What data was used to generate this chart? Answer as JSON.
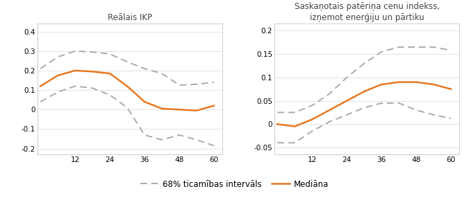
{
  "left_title": "Reālais IKP",
  "right_title": "Saskaņotais patēriņa cenu indekss,\nizņemot enerģiju un pārtiku",
  "x": [
    0,
    6,
    12,
    18,
    24,
    30,
    36,
    42,
    48,
    54,
    60
  ],
  "left_median": [
    0.12,
    0.175,
    0.2,
    0.195,
    0.185,
    0.12,
    0.04,
    0.005,
    0.0,
    -0.005,
    0.02
  ],
  "left_upper": [
    0.21,
    0.27,
    0.3,
    0.295,
    0.285,
    0.245,
    0.21,
    0.185,
    0.125,
    0.13,
    0.14
  ],
  "left_lower": [
    0.04,
    0.09,
    0.12,
    0.11,
    0.075,
    0.01,
    -0.13,
    -0.155,
    -0.13,
    -0.155,
    -0.185
  ],
  "right_median": [
    0.0,
    -0.005,
    0.01,
    0.03,
    0.05,
    0.07,
    0.085,
    0.09,
    0.09,
    0.085,
    0.075
  ],
  "right_upper": [
    0.025,
    0.025,
    0.04,
    0.065,
    0.1,
    0.13,
    0.155,
    0.165,
    0.165,
    0.165,
    0.158
  ],
  "right_lower": [
    -0.04,
    -0.04,
    -0.015,
    0.005,
    0.02,
    0.035,
    0.045,
    0.045,
    0.03,
    0.02,
    0.012
  ],
  "xticks": [
    12,
    24,
    36,
    48,
    60
  ],
  "left_yticks": [
    -0.2,
    -0.1,
    0.0,
    0.1,
    0.2,
    0.3,
    0.4
  ],
  "right_yticks": [
    -0.05,
    0.0,
    0.05,
    0.1,
    0.15,
    0.2
  ],
  "left_ylim": [
    -0.23,
    0.44
  ],
  "right_ylim": [
    -0.065,
    0.215
  ],
  "xlim": [
    -1,
    63
  ],
  "median_color": "#E87820",
  "ci_color": "#AAAAAA",
  "median_lw": 1.8,
  "ci_lw": 1.4,
  "ci_dash": [
    5,
    3
  ],
  "legend_ci_label": "68% ticamības intervāls",
  "legend_median_label": "Mediāna",
  "bg_color": "#FFFFFF",
  "grid_color": "#DDDDDD",
  "border_color": "#CCCCCC",
  "title_fontsize": 8.5,
  "tick_fontsize": 7.5,
  "legend_fontsize": 8.5
}
